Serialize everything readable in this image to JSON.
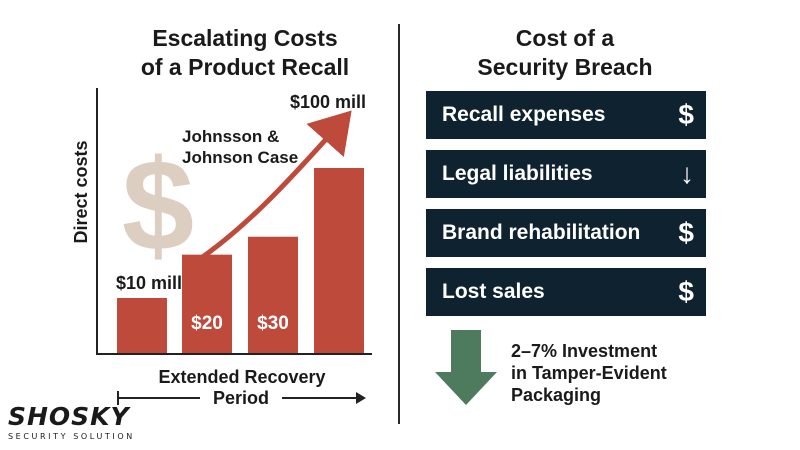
{
  "left_title": {
    "line1": "Escalating Costs",
    "line2": "of a Product Recall"
  },
  "right_title": {
    "line1": "Cost of a",
    "line2": "Security Breach"
  },
  "chart_data": {
    "type": "bar",
    "ylabel": "Direct costs",
    "xlabel": "Extended Recovery",
    "xlabel_line2": "Period",
    "values": [
      10,
      20,
      30,
      100
    ],
    "bar_labels": [
      "",
      "$20",
      "$30",
      ""
    ],
    "start_label": "$10 mill",
    "end_label": "$100 mill",
    "annotation_line1": "Johnsson &",
    "annotation_line2": "Johnson Case",
    "bar_color": "#bd4a3a",
    "arrow_color": "#bd4a3a",
    "watermark_icon": "dollar-icon"
  },
  "breach_items": [
    {
      "label": "Recall expenses",
      "icon": "dollar-icon",
      "glyph": "$"
    },
    {
      "label": "Legal liabilities",
      "icon": "down-arrow-icon",
      "glyph": "↓"
    },
    {
      "label": "Brand rehabilitation",
      "icon": "dollar-icon",
      "glyph": "$"
    },
    {
      "label": "Lost sales",
      "icon": "dollar-icon",
      "glyph": "$"
    }
  ],
  "investment": {
    "line1": "2–7% Investment",
    "line2": "in Tamper-Evident",
    "line3": "Packaging",
    "arrow_color": "#4e7a5e"
  },
  "logo": {
    "main": "SHOSKY",
    "sub": "SECURITY SOLUTION"
  },
  "colors": {
    "row_bg": "#0f2230",
    "accent": "#bd4a3a"
  }
}
